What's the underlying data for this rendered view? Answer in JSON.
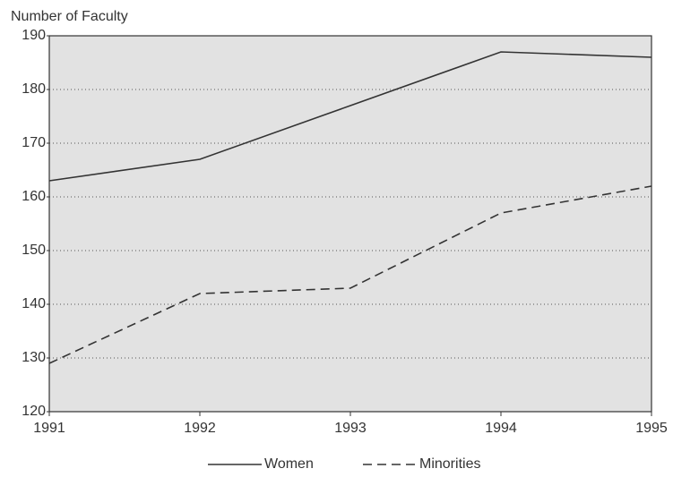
{
  "chart_data": {
    "type": "line",
    "y_label": "Number of Faculty",
    "x": [
      1991,
      1992,
      1993,
      1994,
      1995
    ],
    "series": [
      {
        "name": "Women",
        "color": "#333333",
        "style": "solid",
        "values": [
          163,
          167,
          177,
          187,
          186
        ]
      },
      {
        "name": "Minorities",
        "color": "#333333",
        "style": "dashed",
        "values": [
          129,
          142,
          143,
          157,
          162
        ]
      }
    ],
    "xlim": [
      1991,
      1995
    ],
    "xticks": [
      1991,
      1992,
      1993,
      1994,
      1995
    ],
    "ylim": [
      120,
      190
    ],
    "yticks": [
      120,
      130,
      140,
      150,
      160,
      170,
      180,
      190
    ],
    "grid": true,
    "legend": "bottom"
  }
}
